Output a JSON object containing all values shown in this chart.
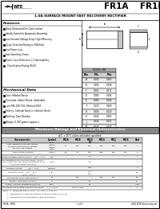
{
  "bg_color": "#ffffff",
  "title_part": "FR1A    FR1K",
  "subtitle": "1.0A SURFACE MOUNT FAST RECOVERY RECTIFIER",
  "features_title": "Features",
  "features": [
    "Glass Passivated Die Construction",
    "Ideally Suited for Automatic Assembly",
    "Low Forward Voltage Drop, High Efficiency",
    "Surge Overload Rating to 30A Peak",
    "Low Power Loss",
    "Fast Switching Times",
    "Plastic Case-Reference J-I, Flammability",
    "  Classification Rating 94V-0"
  ],
  "mech_title": "Mechanical Data",
  "mech_items": [
    "Case: Molded Plastic",
    "Terminals: Solder Plated, Solderable",
    "  per MIL-STD-750, Method 2026",
    "Polarity: Cathode Band or Cathode Notch",
    "Marking: Type Number",
    "Weight: 0.350 grams (approx.)"
  ],
  "table_header": [
    "Dim",
    "Min",
    "Max"
  ],
  "table_rows": [
    [
      "A",
      "0.300",
      "0.360"
    ],
    [
      "B",
      "0.156",
      "0.198"
    ],
    [
      "C",
      "0.051",
      "0.071"
    ],
    [
      "D",
      "0.086",
      "0.106"
    ],
    [
      "E",
      "0.064",
      "0.096"
    ],
    [
      "F",
      "0.130",
      "0.160"
    ],
    [
      "G",
      "0.100",
      "0.120"
    ],
    [
      "H",
      "0.040",
      "0.060"
    ],
    [
      "J",
      "0.014",
      "0.022"
    ],
    [
      "Pk",
      "0.025",
      "0.037"
    ]
  ],
  "ratings_title": "Maximum Ratings and Electrical Characteristics",
  "ratings_subtitle": "@Tₑ = 25°C unless otherwise specified",
  "col_headers": [
    "Characteristic",
    "Symbol",
    "FR1A",
    "FR1B",
    "FR1D\n(1)",
    "FR1G",
    "FR1J",
    "FR1K",
    "Unit"
  ],
  "rows": [
    [
      "Peak Repetitive Reverse Voltage\nWorking Peak Reverse Voltage\nDC Blocking Voltage",
      "Volts\n(VRRM)\n(VRWM)\n(VDC)",
      "50",
      "100",
      "200",
      "400",
      "600",
      "800",
      "V"
    ],
    [
      "RMS Reverse Voltage",
      "V(RMS)",
      "35",
      "70",
      "140",
      "280",
      "420",
      "560",
      "V"
    ],
    [
      "Average Rectified Output Current    @Tₑ = 85°C",
      "I(O)",
      "",
      "",
      "1.0",
      "",
      "",
      "",
      "A"
    ],
    [
      "Non-Repetitive Peak Forward Surge Current\n8.3ms Single half sine-wave superimposed on\nrated load (JEDEC Method)",
      "I(FSM)",
      "",
      "",
      "30",
      "",
      "",
      "",
      "A"
    ],
    [
      "Forward Voltage          @Iₑ = 1.0A",
      "VF(max)",
      "",
      "",
      "1.30",
      "",
      "",
      "",
      "V"
    ],
    [
      "Reverse Current    @Tₑ = 25°C\n                   @Tₑ = 125°C",
      "IR",
      "",
      "",
      "5.0\n500",
      "",
      "",
      "",
      "μA"
    ],
    [
      "Reverse Recovery Time (Note 1)",
      "trr",
      "",
      "150",
      "",
      "250",
      "500",
      "",
      "nS"
    ],
    [
      "Junction Capacitance (Note 2)",
      "CJ",
      "",
      "",
      "15",
      "",
      "",
      "",
      "pF"
    ],
    [
      "Typical Thermal Resistance (Note 3)",
      "RθJ-L",
      "",
      "",
      "15",
      "",
      "",
      "",
      "°C/W"
    ],
    [
      "Operating and Storage Temperature Range",
      "T_J, T_STG",
      "",
      "-55 to +150",
      "",
      "",
      "",
      "",
      "°C"
    ]
  ],
  "notes": [
    "Notes:  1.  Measured with Iₑ 0.5mA, Iᵣ 1.0 mA, Iᵣᵣ 0.25 mA",
    "        2.  Measured at 1 MHz with applied reverse voltage of 4.0V DC",
    "        3.  Mounted per TO (Mounting) & MFR Instructions"
  ],
  "footer_left": "FR1A   FR1K",
  "footer_center": "1 of 3",
  "footer_right": "2000 WTE Semiconductor"
}
